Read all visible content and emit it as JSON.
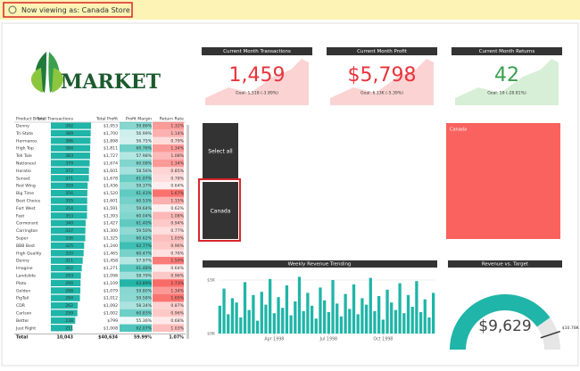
{
  "banner": "Now viewing as: Canada Store",
  "logo": "MARKET",
  "table": {
    "columns": [
      "Product Brand",
      "Total Transactions",
      "Total Profit",
      "Profit Margin",
      "Return Rate"
    ],
    "rows": [
      [
        "Denny",
        392,
        "$1,953",
        "59.86%",
        "1.32%"
      ],
      [
        "Tri-State",
        389,
        "$1,700",
        "56.99%",
        "1.14%"
      ],
      [
        "Hermanos",
        386,
        "$1,898",
        "56.75%",
        "0.79%"
      ],
      [
        "High Top",
        384,
        "$1,811",
        "60.76%",
        "1.34%"
      ],
      [
        "Tell Tale",
        383,
        "$1,727",
        "57.98%",
        "1.08%"
      ],
      [
        "Nationeel",
        379,
        "$1,674",
        "60.08%",
        "1.34%"
      ],
      [
        "Horatio",
        372,
        "$1,601",
        "58.56%",
        "0.85%"
      ],
      [
        "Sunset",
        371,
        "$1,678",
        "61.07%",
        "0.78%"
      ],
      [
        "Red Wing",
        359,
        "$1,436",
        "59.37%",
        "0.64%"
      ],
      [
        "Big Time",
        356,
        "$1,520",
        "61.43%",
        "1.67%"
      ],
      [
        "Best Choice",
        355,
        "$1,601",
        "60.53%",
        "1.15%"
      ],
      [
        "Fort West",
        354,
        "$1,591",
        "59.64%",
        "0.62%"
      ],
      [
        "Fast",
        353,
        "$1,393",
        "60.04%",
        "1.08%"
      ],
      [
        "Cormorant",
        340,
        "$1,427",
        "61.40%",
        "0.94%"
      ],
      [
        "Carrington",
        337,
        "$1,300",
        "59.50%",
        "0.77%"
      ],
      [
        "Super",
        336,
        "$1,325",
        "60.62%",
        "1.03%"
      ],
      [
        "BBB Best",
        325,
        "$1,240",
        "62.77%",
        "0.96%"
      ],
      [
        "High Quality",
        320,
        "$1,465",
        "60.47%",
        "0.76%"
      ],
      [
        "Denny",
        311,
        "$1,458",
        "57.97%",
        "1.59%"
      ],
      [
        "Imagine",
        302,
        "$1,271",
        "61.48%",
        "0.64%"
      ],
      [
        "Landslide",
        293,
        "$1,098",
        "58.79%",
        "0.96%"
      ],
      [
        "Plato",
        290,
        "$1,109",
        "63.89%",
        "1.73%"
      ],
      [
        "Golden",
        288,
        "$1,079",
        "59.80%",
        "1.34%"
      ],
      [
        "PigTail",
        284,
        "$1,012",
        "59.58%",
        "1.65%"
      ],
      [
        "CDR",
        262,
        "$1,092",
        "58.34%",
        "0.87%"
      ],
      [
        "Carlson",
        259,
        "$1,002",
        "60.83%",
        "0.96%"
      ],
      [
        "Better",
        238,
        "$799",
        "55.36%",
        "0.68%"
      ],
      [
        "Just Right",
        211,
        "$1,008",
        "62.07%",
        "1.03%"
      ]
    ],
    "total": [
      "Total",
      "10,043",
      "$40,634",
      "59.99%",
      "1.07%"
    ]
  },
  "cards": [
    {
      "title": "Current Month Transactions",
      "value": "1,459",
      "goal": "Goal: 1,518 (-3.89%)"
    },
    {
      "title": "Current Month Profit",
      "value": "$5,798",
      "goal": "Goal: 6.13K (-5.39%)"
    },
    {
      "title": "Current Month Returns",
      "value": "42",
      "goal": "Goal: 59 (-28.81%)"
    }
  ],
  "slicer": [
    "Select all",
    "Canada"
  ],
  "map_tile": "Canada",
  "weekly": {
    "title": "Weekly Revenue Trending",
    "values": [
      2600,
      4200,
      1800,
      3300,
      2900,
      1500,
      4800,
      2200,
      3600,
      1200,
      3900,
      2700,
      5100,
      1900,
      3400,
      2400,
      4500,
      1700,
      3000,
      5300,
      2100,
      3800,
      2600,
      1400,
      4300,
      3100,
      2000,
      5000,
      2800,
      1600,
      3700,
      2300,
      4600,
      1800,
      3300,
      2700,
      5200,
      2100,
      3500,
      1300,
      4100,
      2900,
      2200,
      4700,
      1900,
      3600,
      2500,
      4900,
      2000,
      3200,
      1500,
      3800
    ],
    "ylim": [
      0,
      6000
    ],
    "yticks": [
      {
        "value": 5000,
        "label": "$5K"
      },
      {
        "value": 0,
        "label": "$0K"
      }
    ],
    "xticks": [
      {
        "value": 13,
        "label": "Apr 1998"
      },
      {
        "value": 26,
        "label": "Jul 1998"
      },
      {
        "value": 39,
        "label": "Oct 1998"
      }
    ]
  },
  "gauge": {
    "title": "Revenue vs. Target",
    "value": 9629,
    "value_label": "$9,629",
    "target": 10780,
    "target_label": "$10.78K",
    "range": [
      0,
      12000
    ]
  }
}
